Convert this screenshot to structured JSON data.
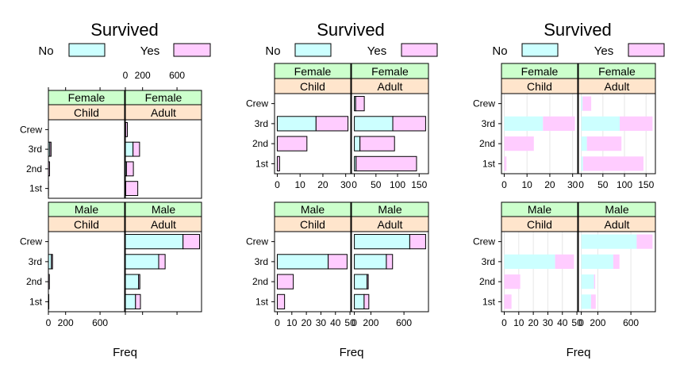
{
  "colors": {
    "no": "#ccffff",
    "yes": "#ffccff",
    "strip_sex": "#ccffcc",
    "strip_age": "#ffe5cc",
    "grid": "#e6e6e6"
  },
  "chart_data": [
    {
      "type": "bar",
      "orientation": "horizontal",
      "stacked": true,
      "title": "Survived",
      "xlabel": "Freq",
      "legend": {
        "position": "top",
        "entries": [
          "No",
          "Yes"
        ]
      },
      "scales": "same",
      "grid": false,
      "outlined": true,
      "categories": [
        "1st",
        "2nd",
        "3rd",
        "Crew"
      ],
      "xlim": [
        0,
        885
      ],
      "ticks": [
        0,
        200,
        600
      ],
      "panels": [
        {
          "sex": "Female",
          "age": "Child",
          "no": [
            0,
            0,
            17,
            0
          ],
          "yes": [
            1,
            13,
            14,
            0
          ]
        },
        {
          "sex": "Female",
          "age": "Adult",
          "no": [
            4,
            13,
            89,
            3
          ],
          "yes": [
            140,
            80,
            76,
            20
          ]
        },
        {
          "sex": "Male",
          "age": "Child",
          "no": [
            0,
            0,
            35,
            0
          ],
          "yes": [
            5,
            11,
            13,
            0
          ]
        },
        {
          "sex": "Male",
          "age": "Adult",
          "no": [
            118,
            154,
            387,
            670
          ],
          "yes": [
            57,
            14,
            75,
            192
          ]
        }
      ]
    },
    {
      "type": "bar",
      "orientation": "horizontal",
      "stacked": true,
      "title": "Survived",
      "xlabel": "Freq",
      "legend": {
        "position": "top",
        "entries": [
          "No",
          "Yes"
        ]
      },
      "scales": "free",
      "grid": false,
      "outlined": true,
      "categories": [
        "1st",
        "2nd",
        "3rd",
        "Crew"
      ],
      "panels": [
        {
          "sex": "Female",
          "age": "Child",
          "no": [
            0,
            0,
            17,
            0
          ],
          "yes": [
            1,
            13,
            14,
            0
          ],
          "xlim": [
            -1.2,
            32.2
          ],
          "ticks": [
            0,
            10,
            20,
            30
          ]
        },
        {
          "sex": "Female",
          "age": "Adult",
          "no": [
            4,
            13,
            89,
            3
          ],
          "yes": [
            140,
            80,
            76,
            20
          ],
          "xlim": [
            -6.6,
            171.6
          ],
          "ticks": [
            0,
            50,
            100,
            150
          ]
        },
        {
          "sex": "Male",
          "age": "Child",
          "no": [
            0,
            0,
            35,
            0
          ],
          "yes": [
            5,
            11,
            13,
            0
          ],
          "xlim": [
            -1.9,
            50.5
          ],
          "ticks": [
            0,
            10,
            20,
            30,
            40,
            50
          ]
        },
        {
          "sex": "Male",
          "age": "Adult",
          "no": [
            118,
            154,
            387,
            670
          ],
          "yes": [
            57,
            14,
            75,
            192
          ],
          "xlim": [
            -34.5,
            896.5
          ],
          "ticks": [
            0,
            200,
            600
          ]
        }
      ]
    },
    {
      "type": "bar",
      "orientation": "horizontal",
      "stacked": true,
      "title": "Survived",
      "xlabel": "Freq",
      "legend": {
        "position": "top",
        "entries": [
          "No",
          "Yes"
        ]
      },
      "scales": "free",
      "grid": true,
      "outlined": false,
      "categories": [
        "1st",
        "2nd",
        "3rd",
        "Crew"
      ],
      "panels": [
        {
          "sex": "Female",
          "age": "Child",
          "no": [
            0,
            0,
            17,
            0
          ],
          "yes": [
            1,
            13,
            14,
            0
          ],
          "xlim": [
            -1.2,
            32.2
          ],
          "ticks": [
            0,
            10,
            20,
            30
          ]
        },
        {
          "sex": "Female",
          "age": "Adult",
          "no": [
            4,
            13,
            89,
            3
          ],
          "yes": [
            140,
            80,
            76,
            20
          ],
          "xlim": [
            -6.6,
            171.6
          ],
          "ticks": [
            0,
            50,
            100,
            150
          ]
        },
        {
          "sex": "Male",
          "age": "Child",
          "no": [
            0,
            0,
            35,
            0
          ],
          "yes": [
            5,
            11,
            13,
            0
          ],
          "xlim": [
            -1.9,
            50.5
          ],
          "ticks": [
            0,
            10,
            20,
            30,
            40,
            50
          ]
        },
        {
          "sex": "Male",
          "age": "Adult",
          "no": [
            118,
            154,
            387,
            670
          ],
          "yes": [
            57,
            14,
            75,
            192
          ],
          "xlim": [
            -34.5,
            896.5
          ],
          "ticks": [
            0,
            200,
            600
          ]
        }
      ]
    }
  ]
}
